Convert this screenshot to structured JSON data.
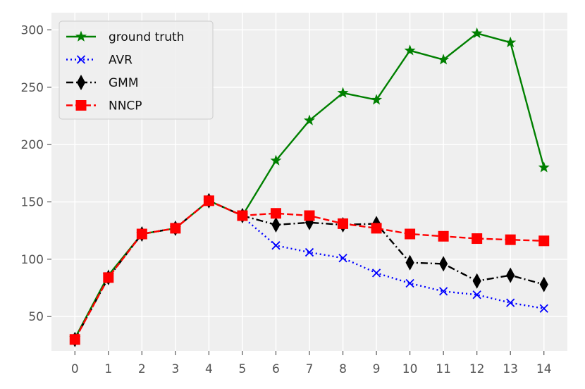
{
  "chart_data": {
    "type": "line",
    "title": "",
    "xlabel": "",
    "ylabel": "",
    "x": [
      0,
      1,
      2,
      3,
      4,
      5,
      6,
      7,
      8,
      9,
      10,
      11,
      12,
      13,
      14
    ],
    "xlim": [
      -0.7,
      14.7
    ],
    "ylim": [
      20,
      315
    ],
    "xticks": [
      "0",
      "1",
      "2",
      "3",
      "4",
      "5",
      "6",
      "7",
      "8",
      "9",
      "10",
      "11",
      "12",
      "13",
      "14"
    ],
    "yticks": [
      50,
      100,
      150,
      200,
      250,
      300
    ],
    "ytick_labels": [
      "50",
      "100",
      "150",
      "200",
      "250",
      "300"
    ],
    "grid": true,
    "background": "#efefef",
    "legend_position": "top-left",
    "series": [
      {
        "name": "ground truth",
        "color": "#008000",
        "line_style": "solid",
        "marker": "star",
        "x": [
          0,
          1,
          2,
          3,
          4,
          5,
          6,
          7,
          8,
          9,
          10,
          11,
          12,
          13,
          14
        ],
        "values": [
          31,
          86,
          122,
          127,
          151,
          138,
          186,
          221,
          245,
          239,
          282,
          274,
          297,
          289,
          180
        ]
      },
      {
        "name": "AVR",
        "color": "#0000ff",
        "line_style": "dotted",
        "marker": "x",
        "x": [
          5,
          6,
          7,
          8,
          9,
          10,
          11,
          12,
          13,
          14
        ],
        "values": [
          137,
          112,
          106,
          101,
          88,
          79,
          72,
          69,
          62,
          57
        ]
      },
      {
        "name": "GMM",
        "color": "#000000",
        "line_style": "dashdot",
        "marker": "thin-diamond",
        "x": [
          0,
          1,
          2,
          3,
          4,
          5,
          6,
          7,
          8,
          9,
          10,
          11,
          12,
          13,
          14
        ],
        "values": [
          30,
          84,
          122,
          127,
          151,
          138,
          130,
          132,
          130,
          131,
          97,
          96,
          81,
          86,
          78
        ]
      },
      {
        "name": "NNCP",
        "color": "#ff0000",
        "line_style": "dashed",
        "marker": "square",
        "x": [
          0,
          1,
          2,
          3,
          4,
          5,
          6,
          7,
          8,
          9,
          10,
          11,
          12,
          13,
          14
        ],
        "values": [
          30,
          84,
          122,
          127,
          151,
          138,
          140,
          138,
          131,
          127,
          122,
          120,
          118,
          117,
          116
        ]
      }
    ]
  }
}
